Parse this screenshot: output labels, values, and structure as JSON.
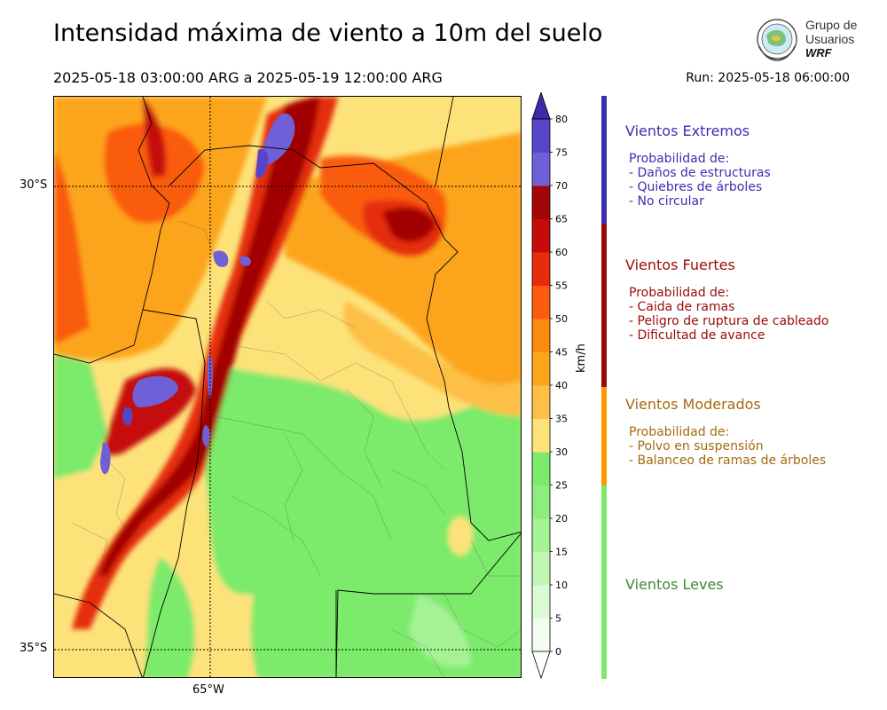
{
  "header": {
    "title": "Intensidad máxima de viento a 10m del suelo",
    "valid_period": "2025-05-18 03:00:00 ARG  a  2025-05-19 12:00:00 ARG",
    "run": "Run: 2025-05-18 06:00:00"
  },
  "logo": {
    "line1": "Grupo de",
    "line2": "Usuarios",
    "line3": "WRF"
  },
  "map": {
    "lat_labels": [
      "30°S",
      "35°S"
    ],
    "lon_labels": [
      "65°W"
    ]
  },
  "colorbar": {
    "unit": "km/h",
    "ticks": [
      "0",
      "5",
      "10",
      "15",
      "20",
      "25",
      "30",
      "35",
      "40",
      "45",
      "50",
      "55",
      "60",
      "65",
      "70",
      "75",
      "80"
    ],
    "colors": [
      "#f3fdf0",
      "#ddfad6",
      "#c2f6b5",
      "#a4f294",
      "#8ded7d",
      "#7cea6a",
      "#fde27a",
      "#fdbf45",
      "#fca51a",
      "#fb8a10",
      "#fa5b0e",
      "#e52d0b",
      "#c60b0b",
      "#a20606",
      "#7060d8",
      "#5745c8",
      "#4530b6"
    ],
    "min_color": "#ffffff",
    "max_color": "#3d2aa8"
  },
  "categories": [
    {
      "title": "Vientos Extremos",
      "prob": "Probabilidad de:",
      "lines": [
        "- Daños de estructuras",
        "- Quiebres de árboles",
        "- No circular"
      ],
      "color": "#3a2fb0"
    },
    {
      "title": "Vientos Fuertes",
      "prob": "Probabilidad de:",
      "lines": [
        "- Caida de ramas",
        "- Peligro de ruptura de cableado",
        "- Dificultad de avance"
      ],
      "color": "#9a0a0a"
    },
    {
      "title": "Vientos Moderados",
      "prob": "Probabilidad de:",
      "lines": [
        "- Polvo en suspensión",
        "- Balanceo de ramas de árboles"
      ],
      "color": "#a46a10"
    },
    {
      "title": "Vientos Leves",
      "prob": "",
      "lines": [],
      "color": "#3c8a30"
    }
  ],
  "category_bar_colors": [
    "#3a2fb0",
    "#9a0a0a",
    "#fb9b00",
    "#7cea6a"
  ]
}
